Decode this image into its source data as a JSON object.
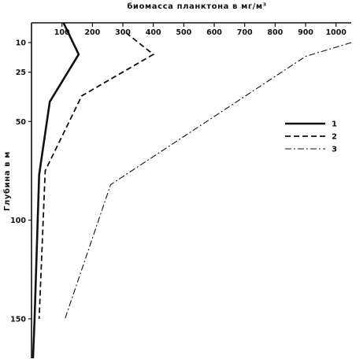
{
  "chart_data": {
    "type": "line",
    "title": "биомасса планктона в мг/м³",
    "xlabel": "биомасса планктона в мг/м³",
    "ylabel": "Глубина в м",
    "x_axis_position": "top",
    "y_axis_inverted": true,
    "xlim": [
      0,
      1050
    ],
    "ylim": [
      0,
      170
    ],
    "x_ticks": [
      100,
      200,
      300,
      400,
      500,
      600,
      700,
      800,
      900,
      1000
    ],
    "y_ticks": [
      10,
      25,
      50,
      100,
      150
    ],
    "grid": false,
    "legend_position": "right",
    "series": [
      {
        "name": "1",
        "line_style": "solid",
        "points": [
          [
            105,
            0
          ],
          [
            155,
            16
          ],
          [
            60,
            40
          ],
          [
            25,
            77
          ],
          [
            10,
            150
          ],
          [
            5,
            170
          ]
        ]
      },
      {
        "name": "2",
        "line_style": "dashed",
        "points": [
          [
            310,
            5
          ],
          [
            400,
            16
          ],
          [
            165,
            37
          ],
          [
            45,
            75
          ],
          [
            25,
            150
          ]
        ]
      },
      {
        "name": "3",
        "line_style": "dash-dot",
        "points": [
          [
            1050,
            10
          ],
          [
            900,
            17
          ],
          [
            260,
            82
          ],
          [
            110,
            150
          ]
        ]
      }
    ]
  }
}
